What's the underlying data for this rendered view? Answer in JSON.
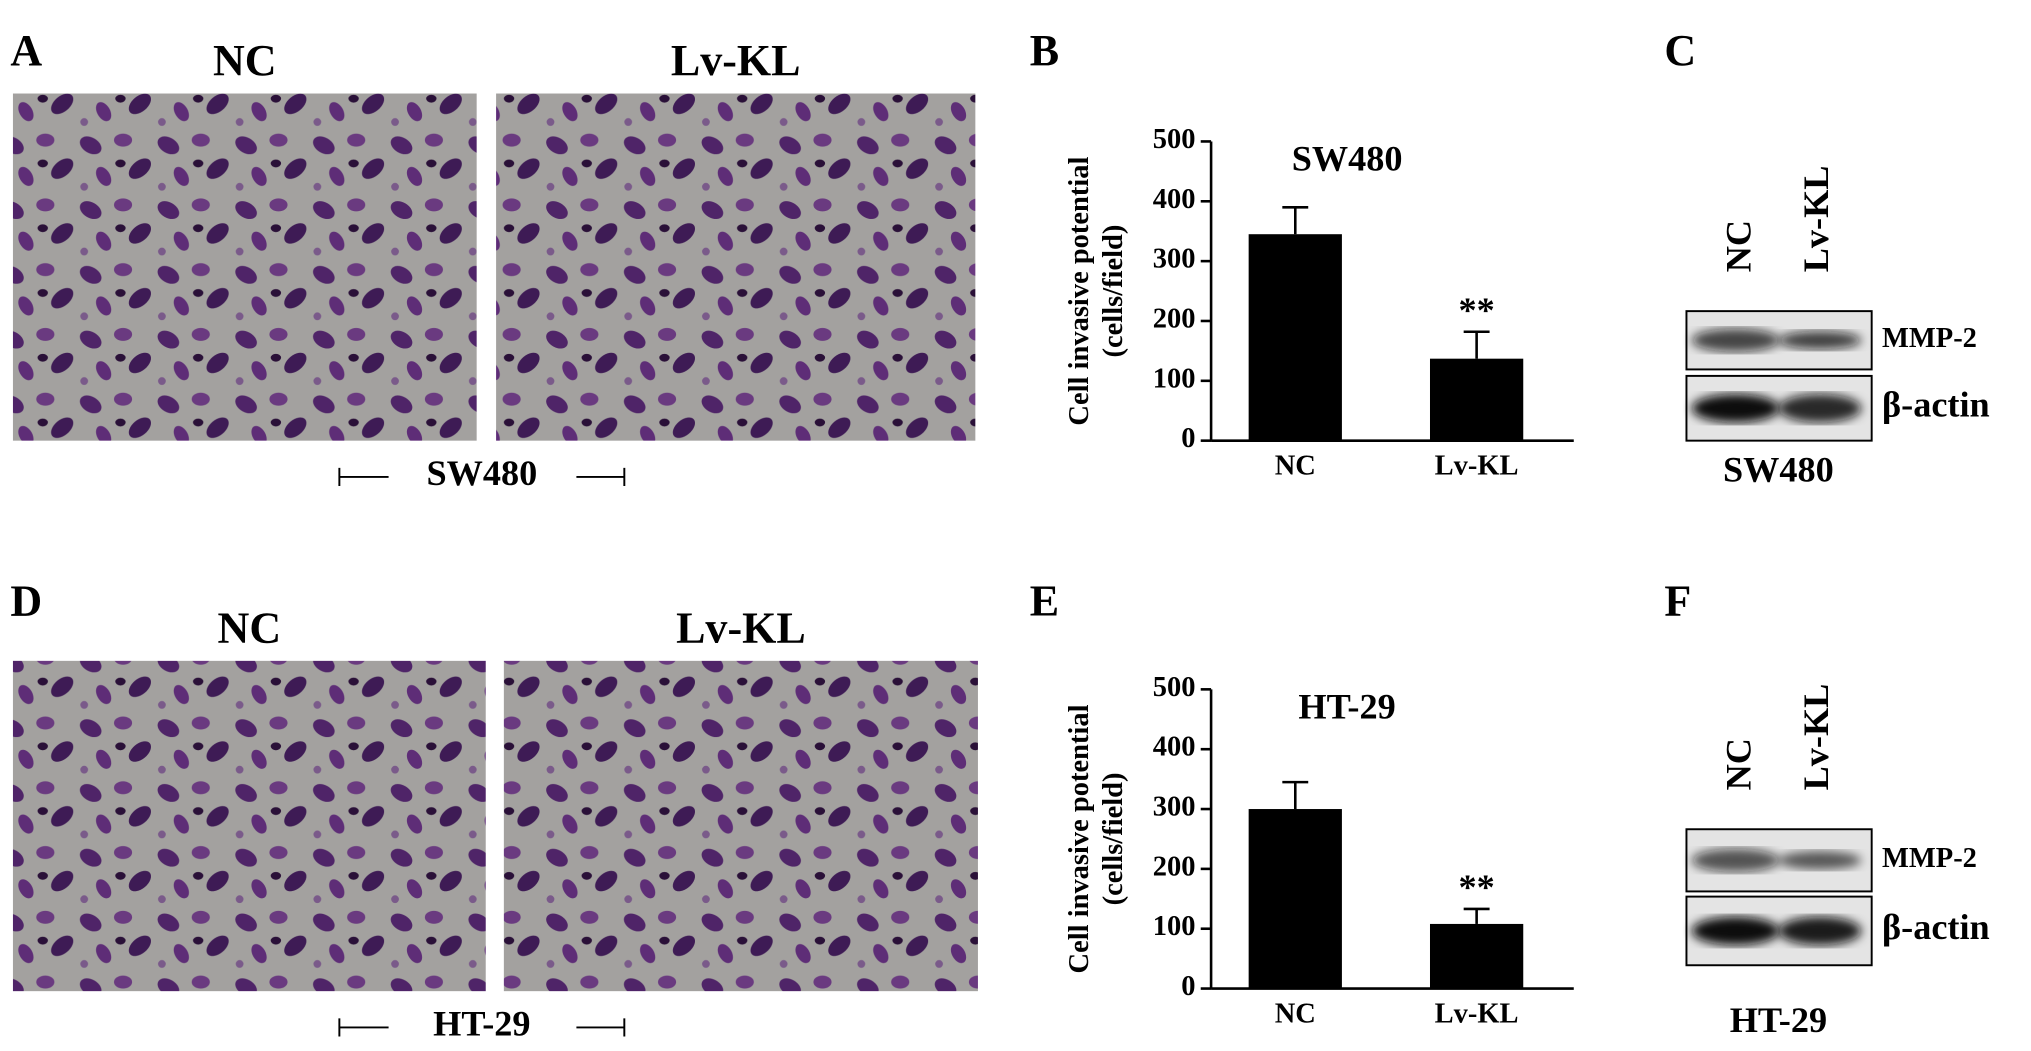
{
  "micrographs": [
    {
      "letter": "A",
      "labels": [
        "NC",
        "Lv-KL"
      ],
      "cell_line": "SW480"
    },
    {
      "letter": "D",
      "labels": [
        "NC",
        "Lv-KL"
      ],
      "cell_line": "HT-29"
    }
  ],
  "blots": [
    {
      "letter": "C",
      "lanes": [
        "NC",
        "Lv-KL"
      ],
      "bands": [
        "MMP-2",
        "β-actin"
      ],
      "cell_line": "SW480"
    },
    {
      "letter": "F",
      "lanes": [
        "NC",
        "Lv-KL"
      ],
      "bands": [
        "MMP-2",
        "β-actin"
      ],
      "cell_line": "HT-29"
    }
  ],
  "chart_data": [
    {
      "type": "bar",
      "panel": "B",
      "title": "SW480",
      "ylabel": [
        "Cell invasive potential",
        "(cells/field)"
      ],
      "categories": [
        "NC",
        "Lv-KL"
      ],
      "values": [
        345,
        137
      ],
      "errors": [
        45,
        45
      ],
      "color": "#000000",
      "annotations": [
        {
          "text": "**",
          "x": "Lv-KL"
        }
      ],
      "ylim": [
        0,
        500
      ],
      "yticks": [
        0,
        100,
        200,
        300,
        400,
        500
      ]
    },
    {
      "type": "bar",
      "panel": "E",
      "title": "HT-29",
      "ylabel": [
        "Cell invasive potential",
        "(cells/field)"
      ],
      "categories": [
        "NC",
        "Lv-KL"
      ],
      "values": [
        300,
        108
      ],
      "errors": [
        45,
        25
      ],
      "color": "#000000",
      "annotations": [
        {
          "text": "**",
          "x": "Lv-KL"
        }
      ],
      "ylim": [
        0,
        500
      ],
      "yticks": [
        0,
        100,
        200,
        300,
        400,
        500
      ]
    }
  ]
}
